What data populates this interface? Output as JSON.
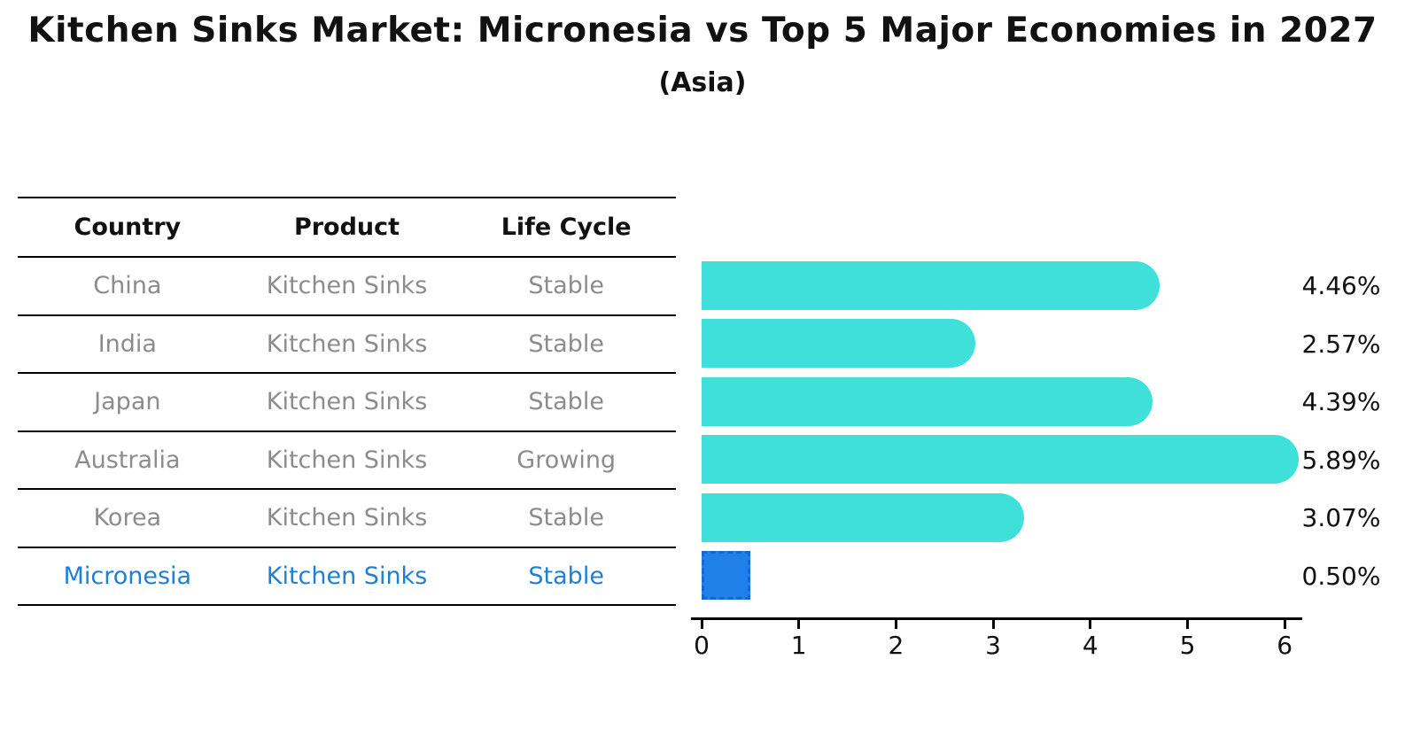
{
  "title": "Kitchen Sinks Market: Micronesia vs Top 5 Major Economies in 2027",
  "subtitle": "(Asia)",
  "table": {
    "headers": [
      "Country",
      "Product",
      "Life Cycle"
    ],
    "rows": [
      {
        "country": "China",
        "product": "Kitchen Sinks",
        "life_cycle": "Stable"
      },
      {
        "country": "India",
        "product": "Kitchen Sinks",
        "life_cycle": "Stable"
      },
      {
        "country": "Japan",
        "product": "Kitchen Sinks",
        "life_cycle": "Stable"
      },
      {
        "country": "Australia",
        "product": "Kitchen Sinks",
        "life_cycle": "Growing"
      },
      {
        "country": "Korea",
        "product": "Kitchen Sinks",
        "life_cycle": "Stable"
      },
      {
        "country": "Micronesia",
        "product": "Kitchen Sinks",
        "life_cycle": "Stable"
      }
    ]
  },
  "chart_data": {
    "type": "bar",
    "orientation": "horizontal",
    "title": "Kitchen Sinks Market: Micronesia vs Top 5 Major Economies in 2027",
    "subtitle": "(Asia)",
    "categories": [
      "China",
      "India",
      "Japan",
      "Australia",
      "Korea",
      "Micronesia"
    ],
    "values": [
      4.46,
      2.57,
      4.39,
      5.89,
      3.07,
      0.5
    ],
    "value_labels": [
      "4.46%",
      "2.57%",
      "4.39%",
      "5.89%",
      "3.07%",
      "0.50%"
    ],
    "xlabel": "",
    "ylabel": "",
    "xlim": [
      0,
      6.2
    ],
    "xticks": [
      "0",
      "1",
      "2",
      "3",
      "4",
      "5",
      "6"
    ],
    "grid": false,
    "legend": "none",
    "highlight_index": 5
  },
  "colors": {
    "bar": "#3fe0da",
    "highlight_bar": "#1e80e8",
    "highlight_border": "#1667cf",
    "highlight_text": "#1e7fd6",
    "row_text": "#8c8c8c",
    "axis": "#000000",
    "text": "#111111"
  }
}
